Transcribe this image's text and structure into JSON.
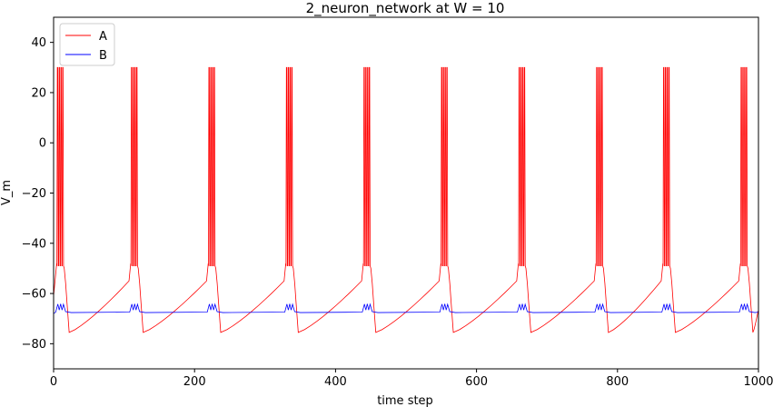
{
  "chart_data": {
    "type": "line",
    "title": "2_neuron_network at W = 10",
    "xlabel": "time step",
    "ylabel": "V_m",
    "xlim": [
      0,
      1000
    ],
    "ylim": [
      -90,
      50
    ],
    "xticks": [
      0,
      200,
      400,
      600,
      800,
      1000
    ],
    "yticks": [
      -80,
      -60,
      -40,
      -20,
      0,
      20,
      40
    ],
    "grid": false,
    "legend": "top-left",
    "burst_onsets": [
      5,
      110,
      220,
      330,
      440,
      550,
      660,
      770,
      865,
      975
    ],
    "burst_spike_offsets": [
      0,
      2.5,
      5,
      7.5
    ],
    "spike_peak": 30,
    "spike_trough": -49,
    "after_burst_min": -75.5,
    "series": [
      {
        "name": "A",
        "color": "#ff0000",
        "description_points": "bursting neuron: 4 spikes per burst peaking at 30, interspike trough about -49, post-burst hyperpolarization to about -75.5, then slow ramp up to about -55 before next burst",
        "values_x": [
          0,
          5,
          8,
          12,
          16,
          20,
          40,
          60,
          80,
          100,
          110,
          112,
          116,
          120,
          125,
          130,
          150,
          170,
          190,
          210,
          220
        ],
        "values_y": [
          -60,
          -48,
          30,
          -49,
          30,
          -63,
          -75.5,
          -71,
          -66,
          -59,
          -48,
          30,
          -49,
          30,
          -63,
          -75.5,
          -71,
          -66,
          -59,
          -52,
          -48
        ]
      },
      {
        "name": "B",
        "color": "#0000ff",
        "description_points": "near-resting neuron at about -67.5 with small oscillations up to about -64 during each A burst",
        "values_x": [
          0,
          20,
          60,
          110,
          112,
          115,
          118,
          121,
          124,
          130,
          180,
          220
        ],
        "values_y": [
          -68,
          -67.8,
          -67.5,
          -67.2,
          -64,
          -66.5,
          -64,
          -66.5,
          -64.5,
          -67.5,
          -67.4,
          -67.2
        ]
      }
    ]
  }
}
